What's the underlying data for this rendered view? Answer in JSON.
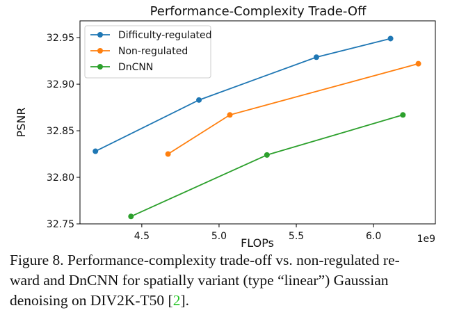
{
  "chart_data": {
    "type": "line",
    "title": "Performance-Complexity Trade-Off",
    "xlabel": "FLOPs",
    "ylabel": "PSNR",
    "x_multiplier_label": "1e9",
    "xlim": [
      4.1,
      6.4
    ],
    "ylim": [
      32.75,
      32.968
    ],
    "x_ticks": [
      4.5,
      5.0,
      5.5,
      6.0
    ],
    "x_tick_labels": [
      "4.5",
      "5.0",
      "5.5",
      "6.0"
    ],
    "y_ticks": [
      32.75,
      32.8,
      32.85,
      32.9,
      32.95
    ],
    "y_tick_labels": [
      "32.75",
      "32.80",
      "32.85",
      "32.90",
      "32.95"
    ],
    "grid": false,
    "legend_position": "top-left",
    "series": [
      {
        "name": "Difficulty-regulated",
        "color": "#1f77b4",
        "x": [
          4.2,
          4.87,
          5.63,
          6.11
        ],
        "y": [
          32.828,
          32.883,
          32.929,
          32.949
        ]
      },
      {
        "name": "Non-regulated",
        "color": "#ff7f0e",
        "x": [
          4.67,
          5.07,
          6.29
        ],
        "y": [
          32.825,
          32.867,
          32.922
        ]
      },
      {
        "name": "DnCNN",
        "color": "#2ca02c",
        "x": [
          4.43,
          5.31,
          6.19
        ],
        "y": [
          32.758,
          32.824,
          32.867
        ]
      }
    ]
  },
  "caption": {
    "line1": "Figure 8. Performance-complexity trade-off vs. non-regulated re-",
    "line2": "ward and DnCNN for spatially variant (type “linear”) Gaussian",
    "line3_before": "denoising on DIV2K-T50 [",
    "citation": "2",
    "line3_after": "]."
  }
}
